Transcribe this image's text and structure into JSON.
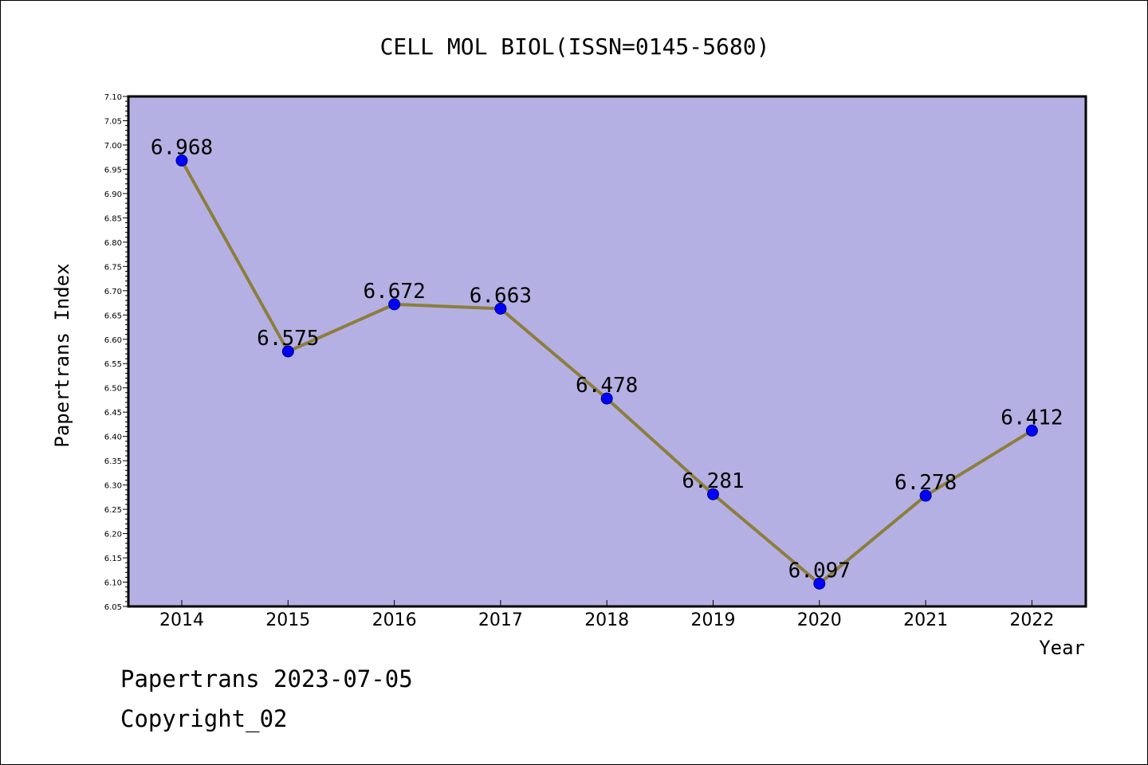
{
  "chart_data": {
    "type": "line",
    "title": "CELL MOL BIOL(ISSN=0145-5680)",
    "xlabel": "Year",
    "ylabel": "Papertrans Index",
    "categories": [
      "2014",
      "2015",
      "2016",
      "2017",
      "2018",
      "2019",
      "2020",
      "2021",
      "2022"
    ],
    "values": [
      6.968,
      6.575,
      6.672,
      6.663,
      6.478,
      6.281,
      6.097,
      6.278,
      6.412
    ],
    "value_labels": [
      "6.968",
      "6.575",
      "6.672",
      "6.663",
      "6.478",
      "6.281",
      "6.097",
      "6.278",
      "6.412"
    ],
    "ylim": [
      6.05,
      7.1
    ],
    "yticks": [
      "6.05",
      "6.10",
      "6.15",
      "6.20",
      "6.25",
      "6.30",
      "6.35",
      "6.40",
      "6.45",
      "6.50",
      "6.55",
      "6.60",
      "6.65",
      "6.70",
      "6.75",
      "6.80",
      "6.85",
      "6.90",
      "6.95",
      "7.00",
      "7.05",
      "7.10"
    ],
    "grid": false,
    "legend": "none",
    "colors": {
      "plot_background": "#b5b0e3",
      "line": "#8c7e3c",
      "marker": "#0000ff",
      "marker_edge": "#000080"
    }
  },
  "footer": {
    "line1": "Papertrans 2023-07-05",
    "line2": "Copyright_02"
  }
}
